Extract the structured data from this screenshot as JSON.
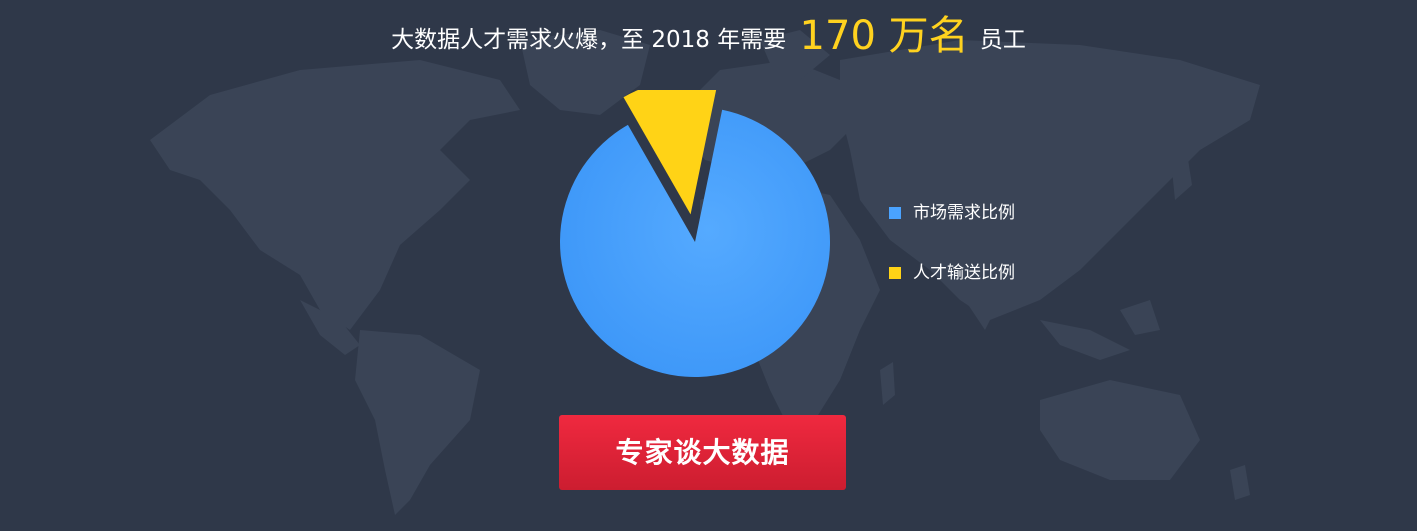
{
  "headline": {
    "prefix": "大数据人才需求火爆，至 2018 年需要",
    "highlight": "170 万名",
    "suffix": "员工"
  },
  "chart_data": {
    "type": "pie",
    "title": "",
    "series": [
      {
        "name": "市场需求比例",
        "value": 88.5,
        "color": "#4aa3ff"
      },
      {
        "name": "人才输送比例",
        "value": 11.5,
        "color": "#ffd316"
      }
    ],
    "exploded": "人才输送比例",
    "legend_position": "right"
  },
  "cta": {
    "label": "专家谈大数据"
  },
  "colors": {
    "background": "#2f3849",
    "map": "#3a4456",
    "accent_yellow": "#ffd21f",
    "cta_red": "#e32639"
  }
}
